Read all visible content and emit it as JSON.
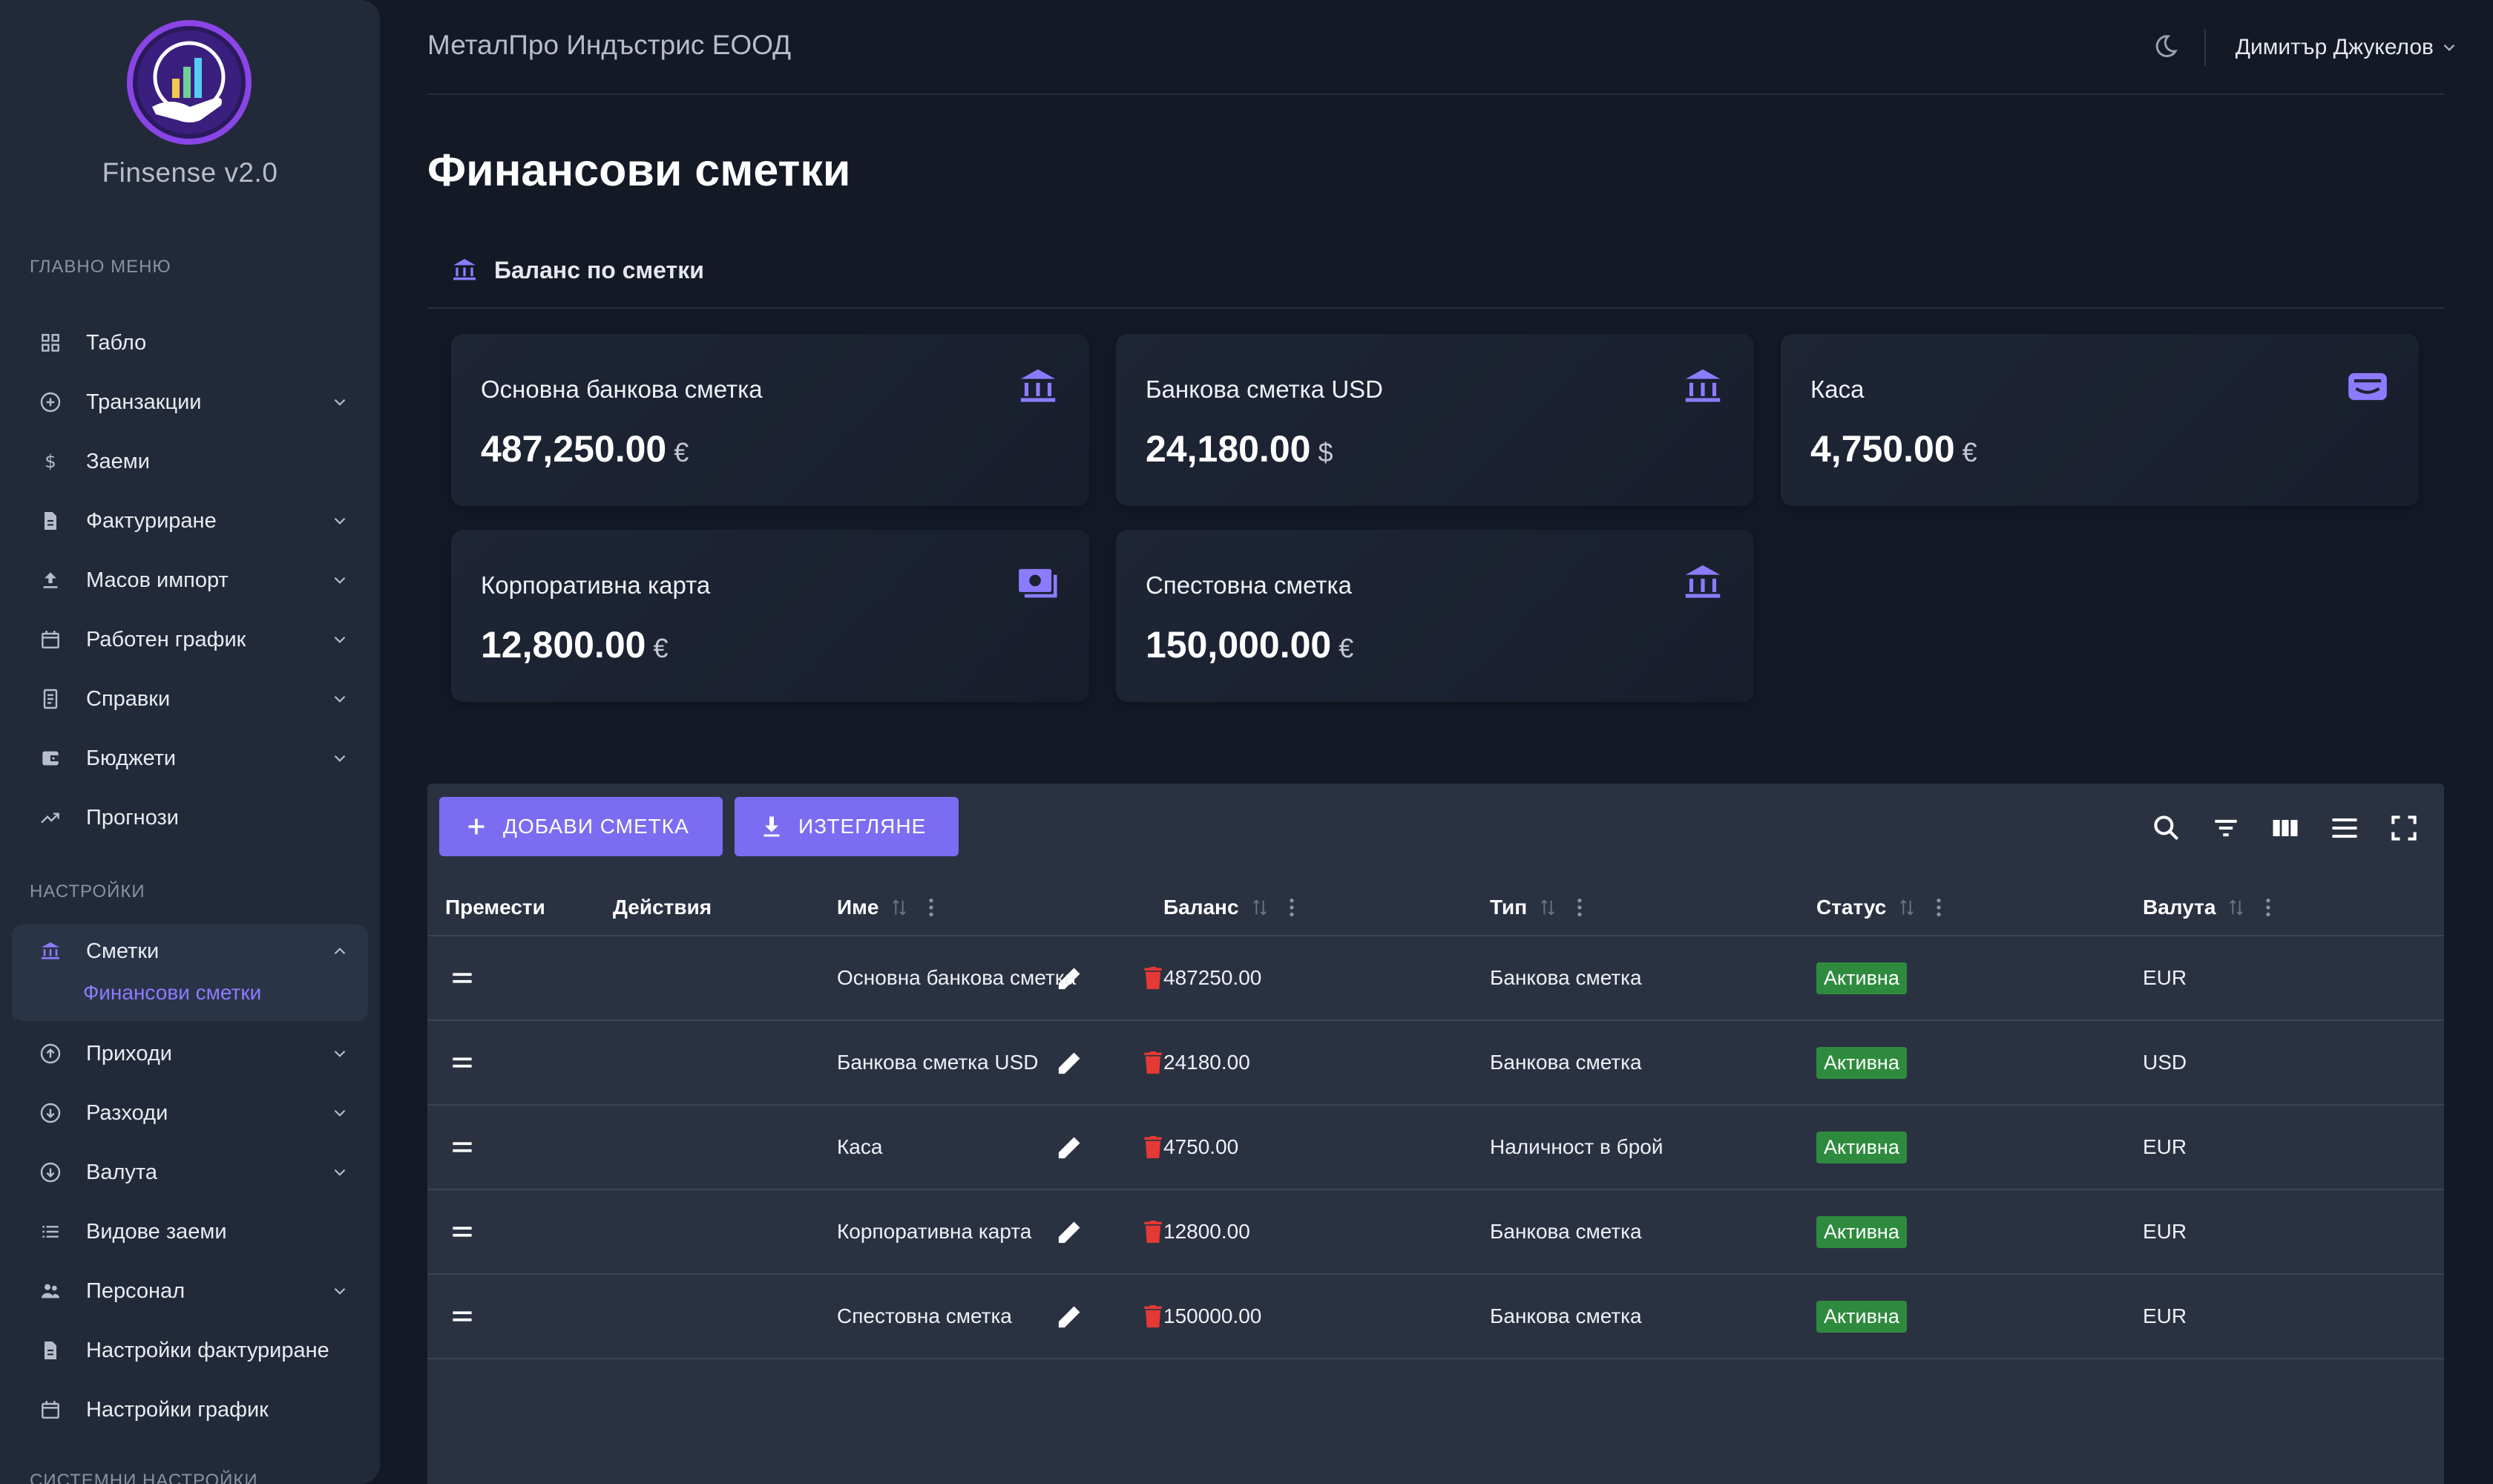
{
  "brand": {
    "name": "Finsense v2.0"
  },
  "colors": {
    "accent": "#7b6cf2",
    "active_sub": "#8d7bff",
    "status_active": "#2e8b3e",
    "delete": "#e53935"
  },
  "sidebar": {
    "main_label": "ГЛАВНО МЕНЮ",
    "settings_label": "НАСТРОЙКИ",
    "system_label": "СИСТЕМНИ НАСТРОЙКИ",
    "main_items": [
      {
        "label": "Табло",
        "icon": "dashboard-icon"
      },
      {
        "label": "Транзакции",
        "icon": "plus-circle-icon"
      },
      {
        "label": "Заеми",
        "icon": "dollar-icon"
      },
      {
        "label": "Фактуриране",
        "icon": "document-icon"
      },
      {
        "label": "Масов импорт",
        "icon": "upload-icon"
      },
      {
        "label": "Работен график",
        "icon": "calendar-icon"
      },
      {
        "label": "Справки",
        "icon": "report-icon"
      },
      {
        "label": "Бюджети",
        "icon": "wallet-icon"
      },
      {
        "label": "Прогнози",
        "icon": "trending-up-icon"
      }
    ],
    "settings_items": [
      {
        "label": "Сметки",
        "icon": "bank-icon"
      },
      {
        "label": "Приходи",
        "icon": "arrow-up-circle-icon"
      },
      {
        "label": "Разходи",
        "icon": "arrow-down-circle-icon"
      },
      {
        "label": "Валута",
        "icon": "currency-icon"
      },
      {
        "label": "Видове заеми",
        "icon": "list-icon"
      },
      {
        "label": "Персонал",
        "icon": "people-icon"
      },
      {
        "label": "Настройки фактуриране",
        "icon": "document-icon"
      },
      {
        "label": "Настройки график",
        "icon": "calendar-icon"
      }
    ],
    "active_sub": "Финансови сметки"
  },
  "header": {
    "company": "МеталПро Индъстрис ЕООД",
    "user": "Димитър Джукелов"
  },
  "page": {
    "title": "Финансови сметки",
    "balance_heading": "Баланс по сметки"
  },
  "cards": [
    {
      "name": "Основна банкова сметка",
      "amount": "487,250.00",
      "currency": "€",
      "icon": "bank-icon"
    },
    {
      "name": "Банкова сметка USD",
      "amount": "24,180.00",
      "currency": "$",
      "icon": "bank-icon"
    },
    {
      "name": "Каса",
      "amount": "4,750.00",
      "currency": "€",
      "icon": "wallet-icon"
    },
    {
      "name": "Корпоративна карта",
      "amount": "12,800.00",
      "currency": "€",
      "icon": "cash-icon"
    },
    {
      "name": "Спестовна сметка",
      "amount": "150,000.00",
      "currency": "€",
      "icon": "bank-icon"
    }
  ],
  "toolbar": {
    "add_label": "ДОБАВИ СМЕТКА",
    "download_label": "ИЗТЕГЛЯНЕ"
  },
  "table": {
    "columns": {
      "move": "Премести",
      "actions": "Действия",
      "name": "Име",
      "balance": "Баланс",
      "type": "Тип",
      "status": "Статус",
      "currency": "Валута"
    },
    "rows": [
      {
        "name": "Основна банкова сметка",
        "balance": "487250.00",
        "type": "Банкова сметка",
        "status": "Активна",
        "currency": "EUR"
      },
      {
        "name": "Банкова сметка USD",
        "balance": "24180.00",
        "type": "Банкова сметка",
        "status": "Активна",
        "currency": "USD"
      },
      {
        "name": "Каса",
        "balance": "4750.00",
        "type": "Наличност в брой",
        "status": "Активна",
        "currency": "EUR"
      },
      {
        "name": "Корпоративна карта",
        "balance": "12800.00",
        "type": "Банкова сметка",
        "status": "Активна",
        "currency": "EUR"
      },
      {
        "name": "Спестовна сметка",
        "balance": "150000.00",
        "type": "Банкова сметка",
        "status": "Активна",
        "currency": "EUR"
      }
    ]
  }
}
